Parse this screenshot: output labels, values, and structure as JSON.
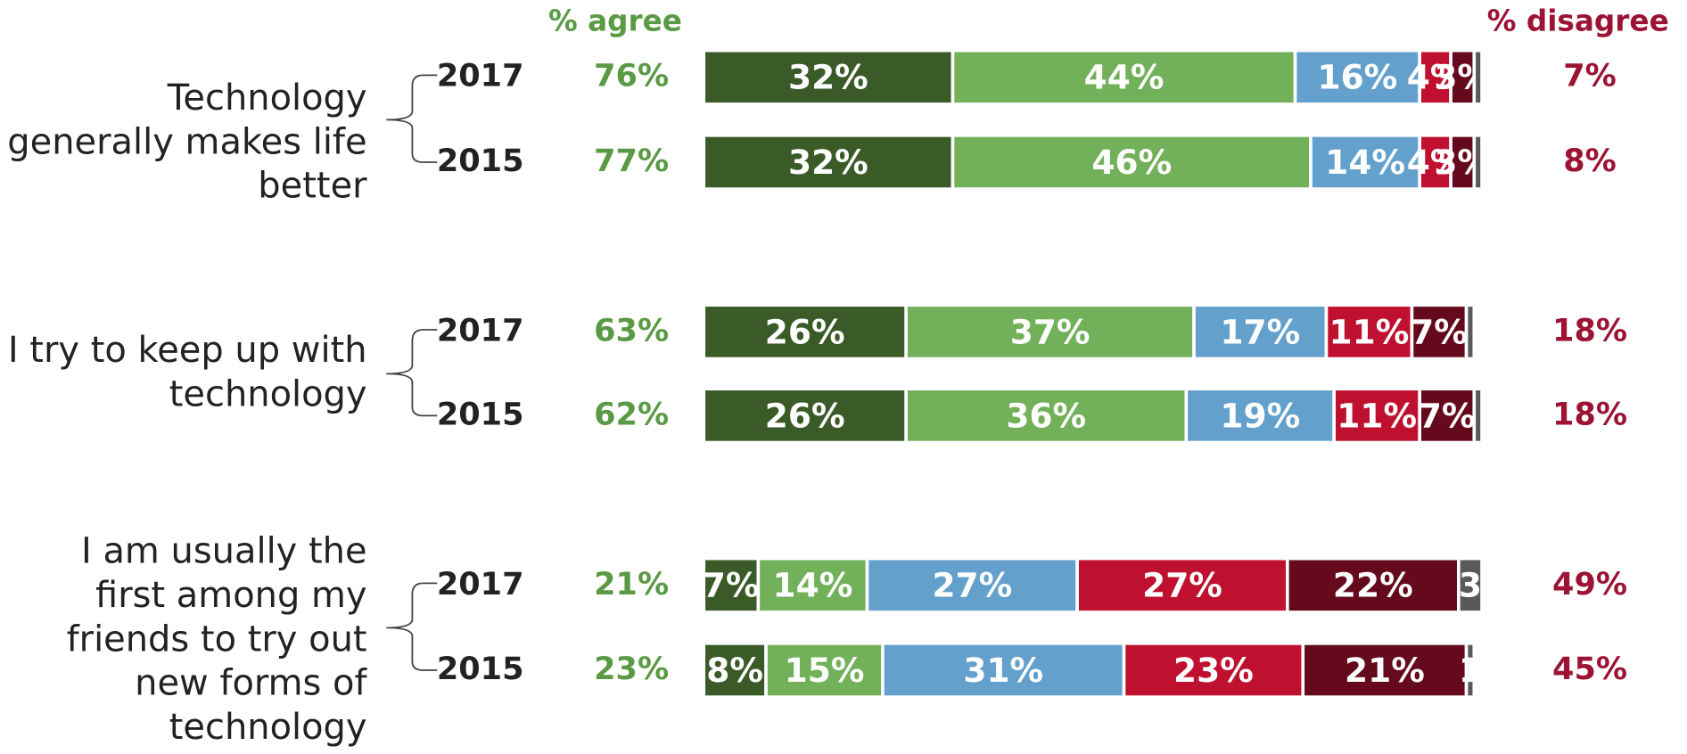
{
  "chart_data": {
    "type": "bar",
    "orientation": "horizontal",
    "stacked": true,
    "header_agree": "% agree",
    "header_disagree": "% disagree",
    "groups": [
      "Technology generally makes life better",
      "I try to keep up with technology",
      "I am usually the first among my friends to try out new forms of technology"
    ],
    "categories": [
      "2017",
      "2015",
      "2017",
      "2015",
      "2017",
      "2015"
    ],
    "xlim": [
      0,
      100
    ],
    "series": [
      {
        "color": "#3a5a28",
        "values": [
          32,
          32,
          26,
          26,
          7,
          8
        ],
        "value_labels": [
          "32%",
          "32%",
          "26%",
          "26%",
          "7%",
          "8%"
        ]
      },
      {
        "color": "#72b05a",
        "values": [
          44,
          46,
          37,
          36,
          14,
          15
        ],
        "value_labels": [
          "44%",
          "46%",
          "37%",
          "36%",
          "14%",
          "15%"
        ]
      },
      {
        "color": "#63a0cc",
        "values": [
          16,
          14,
          17,
          19,
          27,
          31
        ],
        "value_labels": [
          "16%",
          "14%",
          "17%",
          "19%",
          "27%",
          "31%"
        ]
      },
      {
        "color": "#c0102f",
        "values": [
          4,
          4,
          11,
          11,
          27,
          23
        ],
        "value_labels": [
          "4%",
          "4%",
          "11%",
          "11%",
          "27%",
          "23%"
        ]
      },
      {
        "color": "#650a1c",
        "values": [
          3,
          3,
          7,
          7,
          22,
          21
        ],
        "value_labels": [
          "3%",
          "3%",
          "7%",
          "7%",
          "22%",
          "21%"
        ]
      },
      {
        "color": "#595959",
        "values": [
          1,
          1,
          1,
          1,
          3,
          1
        ],
        "value_labels": [
          null,
          null,
          null,
          null,
          "3",
          "1"
        ]
      }
    ],
    "agree": {
      "color": "#5b9a45",
      "values": [
        76,
        77,
        63,
        62,
        21,
        23
      ],
      "value_labels": [
        "76%",
        "77%",
        "63%",
        "62%",
        "21%",
        "23%"
      ]
    },
    "disagree": {
      "color": "#9c1333",
      "values": [
        7,
        8,
        18,
        18,
        49,
        45
      ],
      "value_labels": [
        "7%",
        "8%",
        "18%",
        "18%",
        "49%",
        "45%"
      ]
    }
  }
}
